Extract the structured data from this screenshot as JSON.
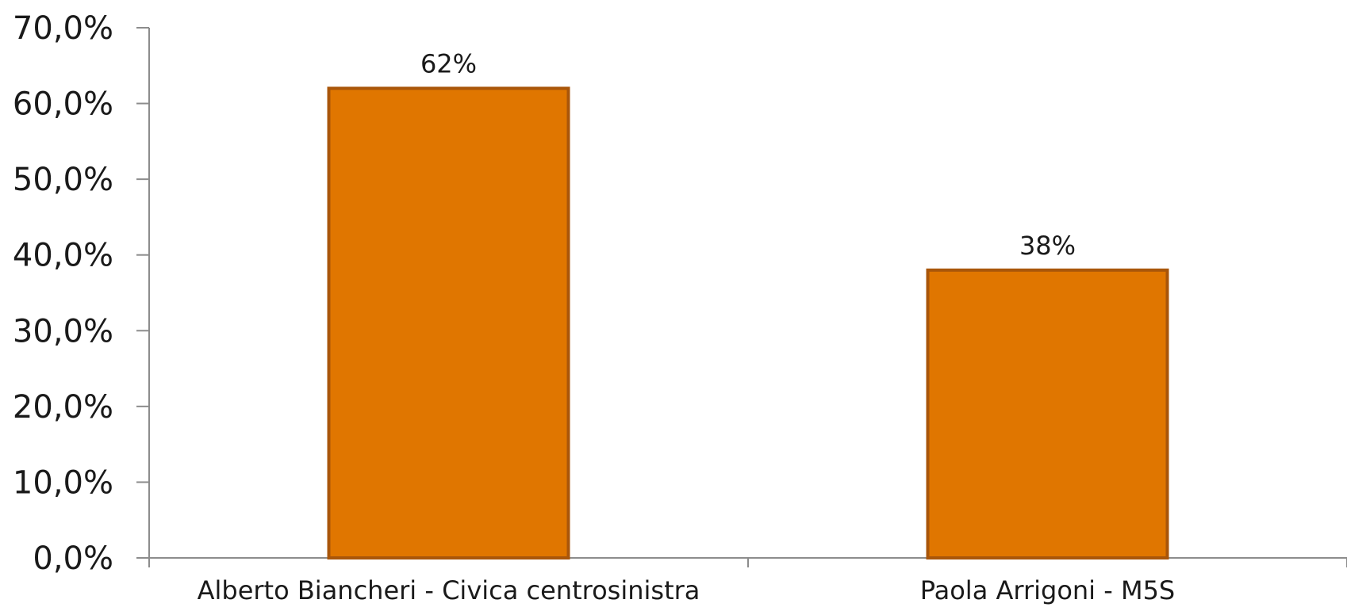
{
  "chart_data": {
    "type": "bar",
    "title": "",
    "xlabel": "",
    "ylabel": "",
    "categories": [
      "Alberto Biancheri - Civica centrosinistra",
      "Paola Arrigoni - M5S"
    ],
    "values": [
      0.62,
      0.38
    ],
    "data_labels": [
      "62%",
      "38%"
    ],
    "ylim": [
      0,
      0.7
    ],
    "y_ticks": [
      0,
      0.1,
      0.2,
      0.3,
      0.4,
      0.5,
      0.6,
      0.7
    ],
    "y_tick_labels": [
      "0,0%",
      "10,0%",
      "20,0%",
      "30,0%",
      "40,0%",
      "50,0%",
      "60,0%",
      "70,0%"
    ],
    "grid": false,
    "legend": "none",
    "colors": {
      "bar_fill": "#E07600",
      "bar_stroke": "#A9560A",
      "axis": "#8C8C8C"
    }
  }
}
